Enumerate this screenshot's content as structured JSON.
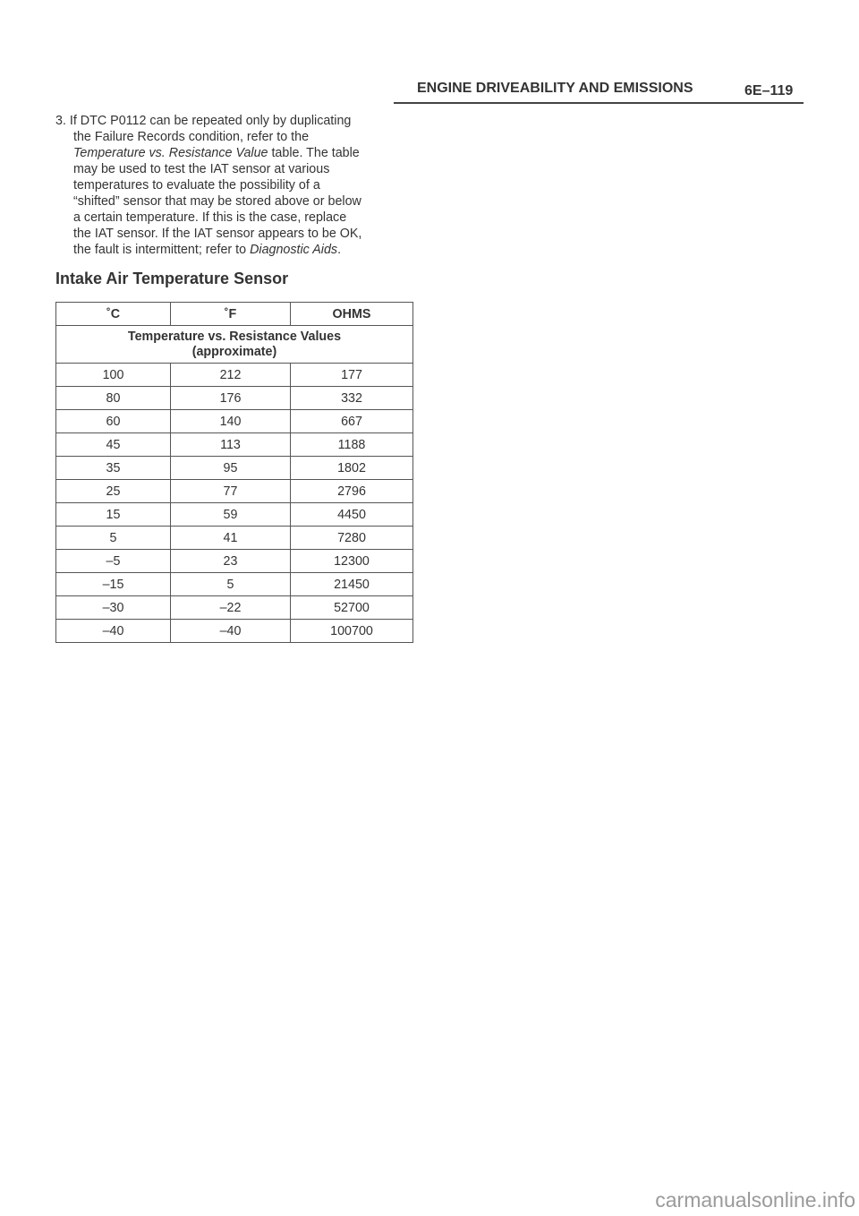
{
  "header": {
    "title": "ENGINE DRIVEABILITY AND EMISSIONS",
    "page": "6E–119"
  },
  "paragraph": {
    "l1": "3. If DTC P0112 can be repeated only by duplicating",
    "l2": "the Failure Records condition, refer to the",
    "l3_italic": "Temperature vs. Resistance Value",
    "l3_rest": " table.  The table",
    "l4": "may be used to test the IAT sensor at various",
    "l5": "temperatures to evaluate the possibility of a",
    "l6": "“shifted” sensor that may be stored above or below",
    "l7": "a certain temperature.  If this is the case, replace",
    "l8": "the IAT sensor.  If the IAT sensor appears to be OK,",
    "l9_start": "the fault is intermittent; refer to ",
    "l9_italic": "Diagnostic Aids",
    "l9_end": "."
  },
  "section_heading": "Intake Air Temperature Sensor",
  "table": {
    "headers": [
      "˚C",
      "˚F",
      "OHMS"
    ],
    "subtitle_line1": "Temperature vs. Resistance Values",
    "subtitle_line2": "(approximate)",
    "rows": [
      [
        "100",
        "212",
        "177"
      ],
      [
        "80",
        "176",
        "332"
      ],
      [
        "60",
        "140",
        "667"
      ],
      [
        "45",
        "113",
        "1188"
      ],
      [
        "35",
        "95",
        "1802"
      ],
      [
        "25",
        "77",
        "2796"
      ],
      [
        "15",
        "59",
        "4450"
      ],
      [
        "5",
        "41",
        "7280"
      ],
      [
        "–5",
        "23",
        "12300"
      ],
      [
        "–15",
        "5",
        "21450"
      ],
      [
        "–30",
        "–22",
        "52700"
      ],
      [
        "–40",
        "–40",
        "100700"
      ]
    ]
  },
  "watermark": "carmanualsonline.info"
}
